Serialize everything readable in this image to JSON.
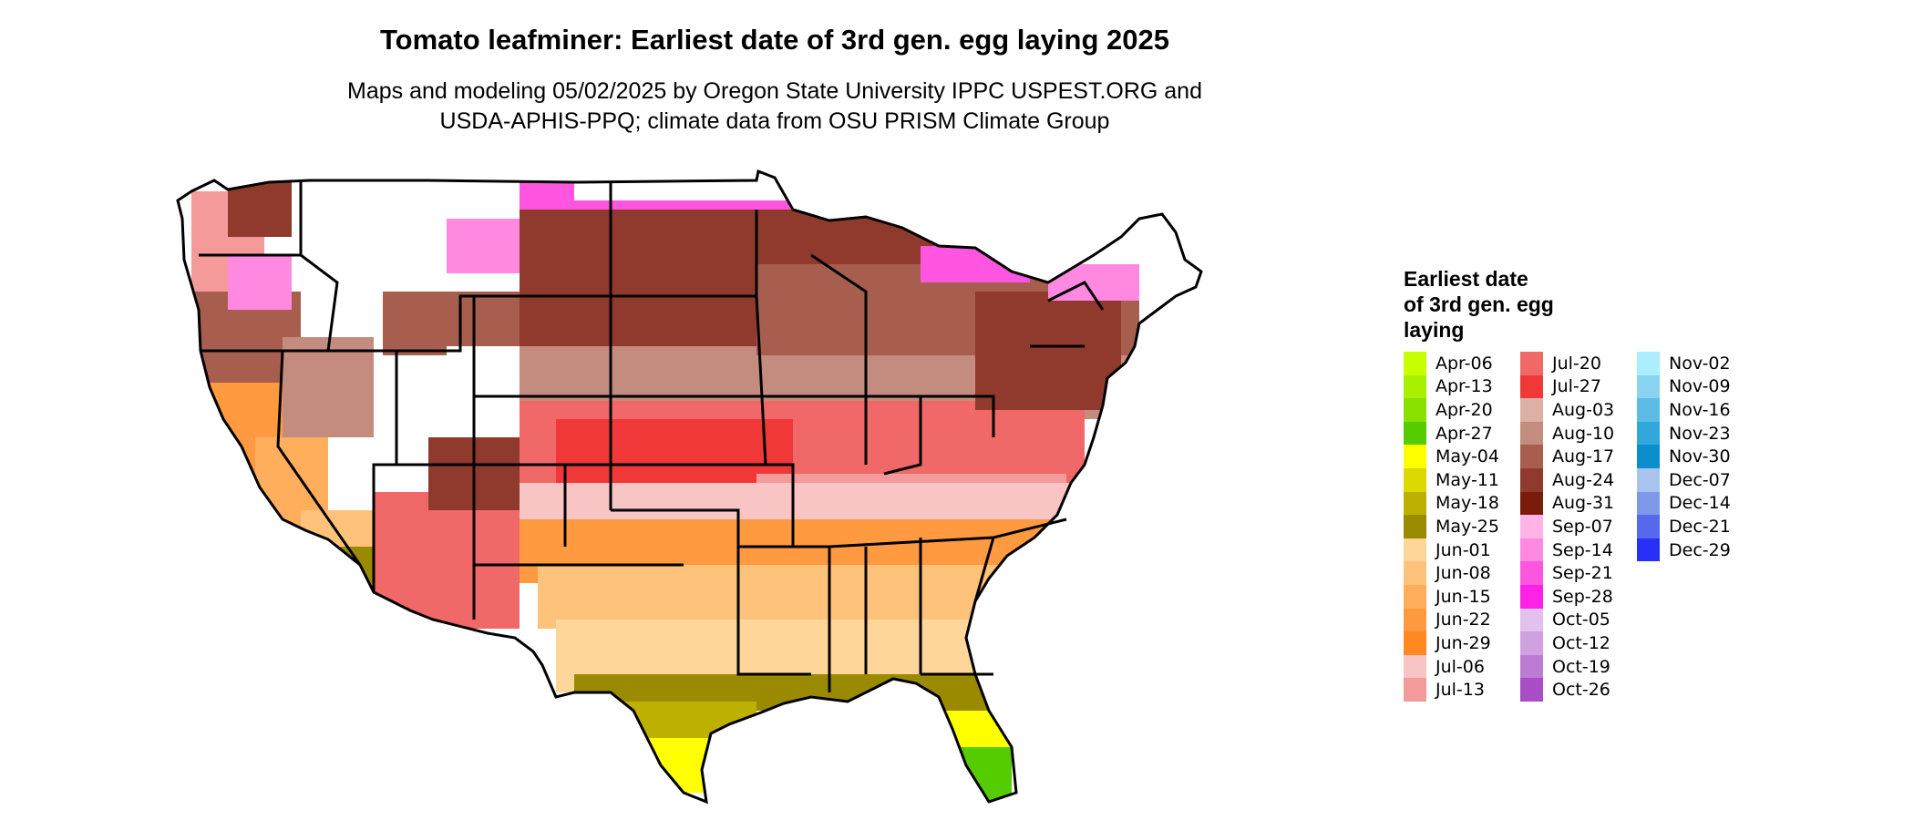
{
  "title": "Tomato leafminer: Earliest date of 3rd gen. egg laying 2025",
  "subtitle_lines": [
    "Maps and modeling 05/02/2025 by Oregon State University IPPC USPEST.ORG and",
    "USDA-APHIS-PPQ; climate data from OSU PRISM Climate Group"
  ],
  "legend": {
    "title_lines": [
      "Earliest date",
      "of 3rd gen. egg",
      "laying"
    ],
    "columns": [
      [
        {
          "label": "Apr-06",
          "color": "#c8ff00"
        },
        {
          "label": "Apr-13",
          "color": "#a9ef00"
        },
        {
          "label": "Apr-20",
          "color": "#8ae000"
        },
        {
          "label": "Apr-27",
          "color": "#55cc00"
        },
        {
          "label": "May-04",
          "color": "#ffff00"
        },
        {
          "label": "May-11",
          "color": "#ddd800"
        },
        {
          "label": "May-18",
          "color": "#bdb000"
        },
        {
          "label": "May-25",
          "color": "#9a8a00"
        },
        {
          "label": "Jun-01",
          "color": "#ffd699"
        },
        {
          "label": "Jun-08",
          "color": "#ffc27a"
        },
        {
          "label": "Jun-15",
          "color": "#ffae5c"
        },
        {
          "label": "Jun-22",
          "color": "#ff9a40"
        },
        {
          "label": "Jun-29",
          "color": "#ff8820"
        },
        {
          "label": "Jul-06",
          "color": "#f8c4c4"
        },
        {
          "label": "Jul-13",
          "color": "#f59a9a"
        }
      ],
      [
        {
          "label": "Jul-20",
          "color": "#f06868"
        },
        {
          "label": "Jul-27",
          "color": "#f03838"
        },
        {
          "label": "Aug-03",
          "color": "#dbb1a6"
        },
        {
          "label": "Aug-10",
          "color": "#c48c7e"
        },
        {
          "label": "Aug-17",
          "color": "#a85e4f"
        },
        {
          "label": "Aug-24",
          "color": "#8f3a2c"
        },
        {
          "label": "Aug-31",
          "color": "#7a1c0c"
        },
        {
          "label": "Sep-07",
          "color": "#ffb3e6"
        },
        {
          "label": "Sep-14",
          "color": "#ff88e0"
        },
        {
          "label": "Sep-21",
          "color": "#ff55e0"
        },
        {
          "label": "Sep-28",
          "color": "#ff22e6"
        },
        {
          "label": "Oct-05",
          "color": "#e2c1ec"
        },
        {
          "label": "Oct-12",
          "color": "#d0a0e0"
        },
        {
          "label": "Oct-19",
          "color": "#bd7cd4"
        },
        {
          "label": "Oct-26",
          "color": "#a94ec6"
        }
      ],
      [
        {
          "label": "Nov-02",
          "color": "#aaeeff"
        },
        {
          "label": "Nov-09",
          "color": "#88d4f2"
        },
        {
          "label": "Nov-16",
          "color": "#5dbce6"
        },
        {
          "label": "Nov-23",
          "color": "#30a8dc"
        },
        {
          "label": "Nov-30",
          "color": "#0a8ecc"
        },
        {
          "label": "Dec-07",
          "color": "#a8c4ee"
        },
        {
          "label": "Dec-14",
          "color": "#7f98ea"
        },
        {
          "label": "Dec-21",
          "color": "#5668ec"
        },
        {
          "label": "Dec-29",
          "color": "#2830f8"
        }
      ]
    ]
  }
}
